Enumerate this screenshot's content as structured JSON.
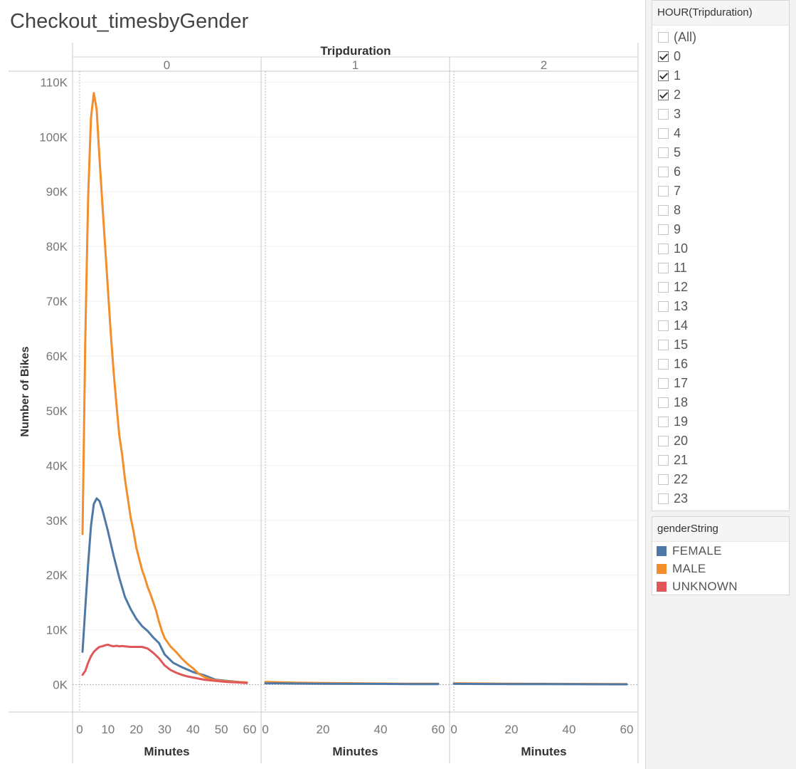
{
  "title": "Checkout_timesbyGender",
  "colors": {
    "FEMALE": "#4e79a7",
    "MALE": "#f28e2b",
    "UNKNOWN": "#e15759"
  },
  "chart_data": {
    "type": "line",
    "title": "Checkout_timesbyGender",
    "facet_header": "Tripduration",
    "xlabel": "Minutes",
    "ylabel": "Number of Bikes",
    "ylim": [
      -5000,
      112000
    ],
    "y_ticks": [
      0,
      10000,
      20000,
      30000,
      40000,
      50000,
      60000,
      70000,
      80000,
      90000,
      100000,
      110000
    ],
    "y_tick_labels": [
      "0K",
      "10K",
      "20K",
      "30K",
      "40K",
      "50K",
      "60K",
      "70K",
      "80K",
      "90K",
      "100K",
      "110K"
    ],
    "grid": true,
    "legend_position": "right",
    "panels": [
      {
        "label": "0",
        "xlim": [
          -2,
          61
        ],
        "x_ticks": [
          0,
          10,
          20,
          30,
          40,
          50,
          60
        ],
        "series": [
          {
            "name": "FEMALE",
            "x": [
              1,
              2,
              3,
              4,
              5,
              6,
              7,
              8,
              9,
              10,
              12,
              14,
              16,
              18,
              20,
              22,
              24,
              26,
              28,
              30,
              33,
              36,
              40,
              44,
              48,
              52,
              56,
              59
            ],
            "values": [
              6000,
              14000,
              22000,
              29000,
              33000,
              34000,
              33500,
              32000,
              30000,
              28000,
              23500,
              19500,
              16000,
              13800,
              12000,
              10700,
              9800,
              8600,
              7600,
              5500,
              4000,
              3200,
              2300,
              1700,
              900,
              700,
              500,
              400
            ]
          },
          {
            "name": "MALE",
            "x": [
              1,
              2,
              3,
              4,
              5,
              6,
              7,
              8,
              9,
              10,
              11,
              12,
              13,
              14,
              15,
              16,
              17,
              18,
              19,
              20,
              21,
              22,
              23,
              24,
              25,
              26,
              27,
              28,
              29,
              30,
              32,
              34,
              36,
              38,
              40,
              42,
              44,
              46,
              48,
              50,
              52,
              55,
              59
            ],
            "values": [
              27500,
              63000,
              89000,
              103500,
              108000,
              105000,
              96000,
              88000,
              80000,
              72000,
              64000,
              57000,
              51000,
              45500,
              42000,
              37500,
              34000,
              30500,
              28000,
              25000,
              23000,
              21000,
              19500,
              17800,
              16500,
              15000,
              13500,
              11500,
              9800,
              8500,
              7000,
              6000,
              4800,
              3800,
              3000,
              2000,
              1400,
              1000,
              800,
              700,
              600,
              500,
              400
            ]
          },
          {
            "name": "UNKNOWN",
            "x": [
              1,
              2,
              3,
              4,
              5,
              6,
              7,
              8,
              9,
              10,
              11,
              12,
              13,
              14,
              15,
              16,
              18,
              20,
              22,
              24,
              26,
              28,
              30,
              32,
              34,
              36,
              38,
              40,
              44,
              48,
              52,
              56,
              59
            ],
            "values": [
              1800,
              2500,
              4000,
              5200,
              6000,
              6500,
              6900,
              7000,
              7200,
              7300,
              7100,
              7000,
              7100,
              7000,
              7050,
              7000,
              6900,
              6900,
              6900,
              6600,
              5800,
              4800,
              3500,
              2700,
              2200,
              1800,
              1500,
              1300,
              900,
              700,
              500,
              400,
              300
            ]
          }
        ]
      },
      {
        "label": "1",
        "xlim": [
          -1,
          61
        ],
        "x_ticks": [
          0,
          20,
          40,
          60
        ],
        "series": [
          {
            "name": "MALE",
            "x": [
              0,
              10,
              20,
              30,
              40,
              50,
              60
            ],
            "values": [
              500,
              350,
              300,
              250,
              200,
              180,
              160
            ]
          },
          {
            "name": "FEMALE",
            "x": [
              0,
              10,
              20,
              30,
              40,
              50,
              60
            ],
            "values": [
              250,
              200,
              180,
              150,
              130,
              110,
              100
            ]
          }
        ]
      },
      {
        "label": "2",
        "xlim": [
          -1,
          61
        ],
        "x_ticks": [
          0,
          20,
          40,
          60
        ],
        "series": [
          {
            "name": "MALE",
            "x": [
              0,
              10,
              20,
              30,
              40,
              50,
              60
            ],
            "values": [
              250,
              200,
              180,
              150,
              130,
              120,
              110
            ]
          },
          {
            "name": "FEMALE",
            "x": [
              0,
              10,
              20,
              30,
              40,
              50,
              60
            ],
            "values": [
              150,
              120,
              100,
              90,
              80,
              70,
              60
            ]
          }
        ]
      }
    ]
  },
  "filter": {
    "title": "HOUR(Tripduration)",
    "items": [
      {
        "label": "(All)",
        "checked": false
      },
      {
        "label": "0",
        "checked": true
      },
      {
        "label": "1",
        "checked": true
      },
      {
        "label": "2",
        "checked": true
      },
      {
        "label": "3",
        "checked": false
      },
      {
        "label": "4",
        "checked": false
      },
      {
        "label": "5",
        "checked": false
      },
      {
        "label": "6",
        "checked": false
      },
      {
        "label": "7",
        "checked": false
      },
      {
        "label": "8",
        "checked": false
      },
      {
        "label": "9",
        "checked": false
      },
      {
        "label": "10",
        "checked": false
      },
      {
        "label": "11",
        "checked": false
      },
      {
        "label": "12",
        "checked": false
      },
      {
        "label": "13",
        "checked": false
      },
      {
        "label": "14",
        "checked": false
      },
      {
        "label": "15",
        "checked": false
      },
      {
        "label": "16",
        "checked": false
      },
      {
        "label": "17",
        "checked": false
      },
      {
        "label": "18",
        "checked": false
      },
      {
        "label": "19",
        "checked": false
      },
      {
        "label": "20",
        "checked": false
      },
      {
        "label": "21",
        "checked": false
      },
      {
        "label": "22",
        "checked": false
      },
      {
        "label": "23",
        "checked": false
      }
    ]
  },
  "legend": {
    "title": "genderString",
    "items": [
      {
        "label": "FEMALE",
        "color": "#4e79a7"
      },
      {
        "label": "MALE",
        "color": "#f28e2b"
      },
      {
        "label": "UNKNOWN",
        "color": "#e15759"
      }
    ]
  }
}
